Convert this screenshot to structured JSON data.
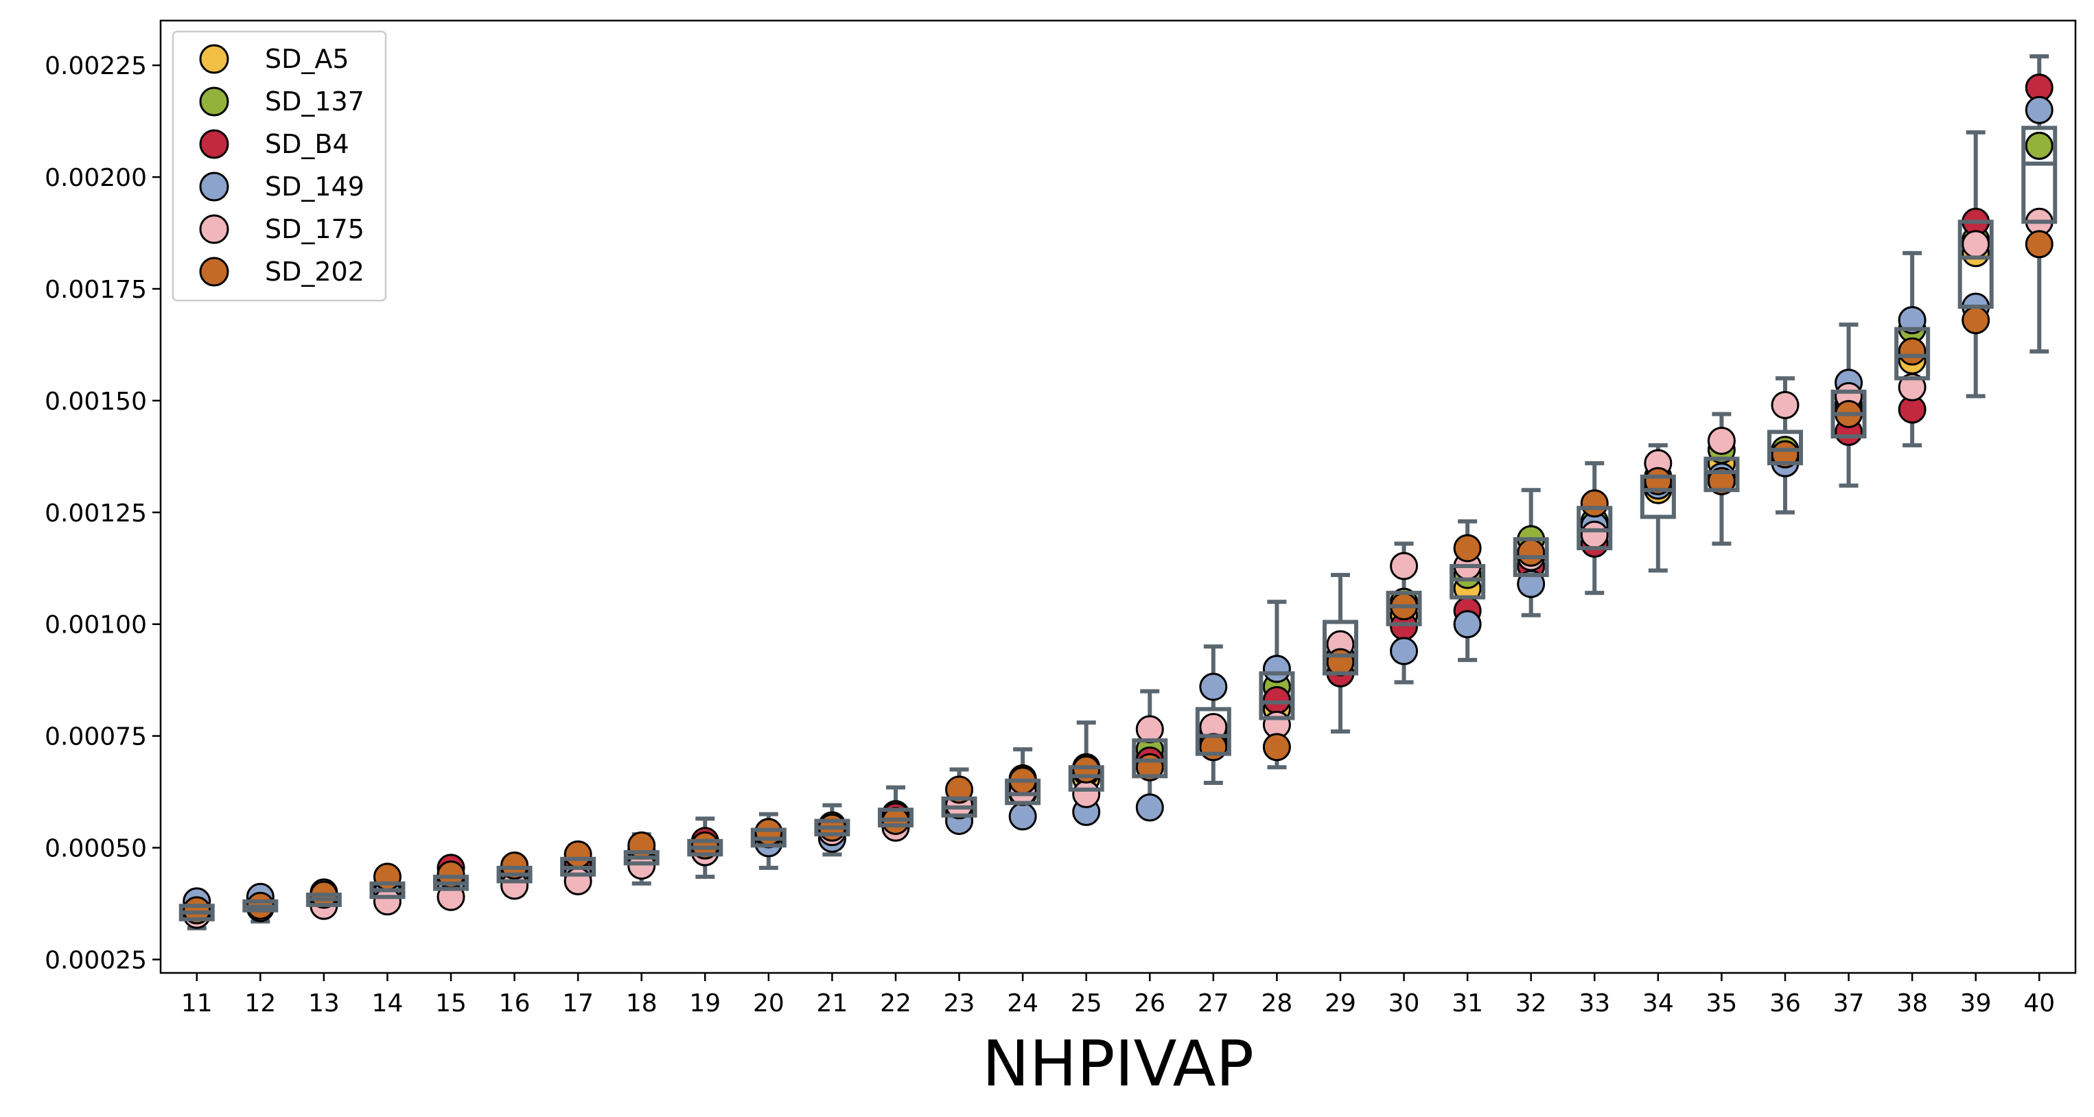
{
  "chart_data": {
    "type": "box+scatter",
    "title": "",
    "xlabel": "NHPIVAP",
    "ylabel": "",
    "x": [
      11,
      12,
      13,
      14,
      15,
      16,
      17,
      18,
      19,
      20,
      21,
      22,
      23,
      24,
      25,
      26,
      27,
      28,
      29,
      30,
      31,
      32,
      33,
      34,
      35,
      36,
      37,
      38,
      39,
      40
    ],
    "x_tick_labels": [
      "11",
      "12",
      "13",
      "14",
      "15",
      "16",
      "17",
      "18",
      "19",
      "20",
      "21",
      "22",
      "23",
      "24",
      "25",
      "26",
      "27",
      "28",
      "29",
      "30",
      "31",
      "32",
      "33",
      "34",
      "35",
      "36",
      "37",
      "38",
      "39",
      "40"
    ],
    "ylim": [
      0.00022,
      0.00235
    ],
    "y_ticks": [
      0.00025,
      0.0005,
      0.00075,
      0.001,
      0.00125,
      0.0015,
      0.00175,
      0.002,
      0.00225
    ],
    "y_tick_labels": [
      "0.00025",
      "0.00050",
      "0.00075",
      "0.00100",
      "0.00125",
      "0.00150",
      "0.00175",
      "0.00200",
      "0.00225"
    ],
    "grid": false,
    "legend_position": "top-left",
    "box_style": {
      "edge_color": "#5b6770",
      "face_color": "none"
    },
    "series": [
      {
        "name": "SD_A5",
        "color": "#f2bf45",
        "values": [
          0.000355,
          0.00037,
          0.000385,
          0.000405,
          0.00042,
          0.00044,
          0.000455,
          0.000475,
          0.0005,
          0.00052,
          0.000545,
          0.00056,
          0.000585,
          0.00062,
          0.000655,
          0.0007,
          0.00074,
          0.00081,
          0.000915,
          0.00102,
          0.00108,
          0.00113,
          0.00121,
          0.0013,
          0.00136,
          0.00138,
          0.00149,
          0.00159,
          0.00183,
          0.00207
        ]
      },
      {
        "name": "SD_137",
        "color": "#93b23b",
        "values": [
          0.00036,
          0.00038,
          0.00039,
          0.000415,
          0.000435,
          0.000455,
          0.000465,
          0.00049,
          0.00051,
          0.000525,
          0.00055,
          0.000575,
          0.0006,
          0.00064,
          0.00067,
          0.00072,
          0.00076,
          0.00086,
          0.00093,
          0.00105,
          0.00111,
          0.00119,
          0.00123,
          0.00132,
          0.00139,
          0.00139,
          0.00148,
          0.00166,
          0.00186,
          0.00207
        ]
      },
      {
        "name": "SD_B4",
        "color": "#c2283e",
        "values": [
          0.000355,
          0.000375,
          0.000385,
          0.000415,
          0.000455,
          0.00046,
          0.00047,
          0.000495,
          0.000515,
          0.000535,
          0.000545,
          0.00057,
          0.00057,
          0.000655,
          0.00068,
          0.000695,
          0.000735,
          0.00083,
          0.00089,
          0.000995,
          0.00103,
          0.00113,
          0.00118,
          0.00133,
          0.00132,
          0.00137,
          0.00143,
          0.00148,
          0.0019,
          0.0022
        ]
      },
      {
        "name": "SD_149",
        "color": "#8ca3cb",
        "values": [
          0.00038,
          0.00039,
          0.0004,
          0.0004,
          0.00042,
          0.00043,
          0.00044,
          0.00047,
          0.00049,
          0.00051,
          0.00052,
          0.00055,
          0.00056,
          0.00057,
          0.00058,
          0.00059,
          0.00086,
          0.0009,
          0.00093,
          0.00094,
          0.001,
          0.00109,
          0.00122,
          0.00131,
          0.00133,
          0.00136,
          0.00154,
          0.00168,
          0.00171,
          0.00215
        ]
      },
      {
        "name": "SD_175",
        "color": "#f0b6bc",
        "values": [
          0.00035,
          0.000365,
          0.00037,
          0.00038,
          0.00039,
          0.000415,
          0.000425,
          0.00046,
          0.00049,
          0.00053,
          0.000535,
          0.000545,
          0.000595,
          0.000625,
          0.00062,
          0.000765,
          0.00077,
          0.000775,
          0.000955,
          0.00113,
          0.00113,
          0.00115,
          0.0012,
          0.00136,
          0.00141,
          0.00149,
          0.00151,
          0.00153,
          0.00185,
          0.0019
        ]
      },
      {
        "name": "SD_202",
        "color": "#c36a26",
        "values": [
          0.00036,
          0.00037,
          0.000395,
          0.000435,
          0.00044,
          0.00046,
          0.000485,
          0.000505,
          0.000505,
          0.000535,
          0.000545,
          0.00056,
          0.00063,
          0.00065,
          0.000675,
          0.00068,
          0.000725,
          0.000725,
          0.000915,
          0.00104,
          0.00117,
          0.00116,
          0.00127,
          0.00132,
          0.00132,
          0.00138,
          0.00147,
          0.00161,
          0.00168,
          0.00185
        ]
      }
    ],
    "boxes": [
      {
        "x": 11,
        "whislo": 0.00032,
        "q1": 0.00034,
        "med": 0.000355,
        "q3": 0.00037,
        "whishi": 0.000385
      },
      {
        "x": 12,
        "whislo": 0.000335,
        "q1": 0.00036,
        "med": 0.000368,
        "q3": 0.00038,
        "whishi": 0.00039
      },
      {
        "x": 13,
        "whislo": 0.000355,
        "q1": 0.000372,
        "med": 0.000385,
        "q3": 0.000395,
        "whishi": 0.00041
      },
      {
        "x": 14,
        "whislo": 0.000375,
        "q1": 0.00039,
        "med": 0.000405,
        "q3": 0.00042,
        "whishi": 0.00044
      },
      {
        "x": 15,
        "whislo": 0.000385,
        "q1": 0.000408,
        "med": 0.00042,
        "q3": 0.000435,
        "whishi": 0.00046
      },
      {
        "x": 16,
        "whislo": 0.000395,
        "q1": 0.000425,
        "med": 0.00044,
        "q3": 0.000455,
        "whishi": 0.00047
      },
      {
        "x": 17,
        "whislo": 0.000415,
        "q1": 0.00044,
        "med": 0.000455,
        "q3": 0.000475,
        "whishi": 0.000505
      },
      {
        "x": 18,
        "whislo": 0.00042,
        "q1": 0.000465,
        "med": 0.000478,
        "q3": 0.00049,
        "whishi": 0.00053
      },
      {
        "x": 19,
        "whislo": 0.000435,
        "q1": 0.000485,
        "med": 0.0005,
        "q3": 0.000515,
        "whishi": 0.000565
      },
      {
        "x": 20,
        "whislo": 0.000455,
        "q1": 0.000505,
        "med": 0.00052,
        "q3": 0.00054,
        "whishi": 0.000575
      },
      {
        "x": 21,
        "whislo": 0.000485,
        "q1": 0.00053,
        "med": 0.000545,
        "q3": 0.00056,
        "whishi": 0.000595
      },
      {
        "x": 22,
        "whislo": 0.00053,
        "q1": 0.00055,
        "med": 0.000563,
        "q3": 0.000585,
        "whishi": 0.000635
      },
      {
        "x": 23,
        "whislo": 0.00055,
        "q1": 0.000572,
        "med": 0.00059,
        "q3": 0.00061,
        "whishi": 0.000675
      },
      {
        "x": 24,
        "whislo": 0.00057,
        "q1": 0.0006,
        "med": 0.00062,
        "q3": 0.00065,
        "whishi": 0.00072
      },
      {
        "x": 25,
        "whislo": 0.000575,
        "q1": 0.00063,
        "med": 0.00066,
        "q3": 0.00068,
        "whishi": 0.00078
      },
      {
        "x": 26,
        "whislo": 0.00059,
        "q1": 0.00066,
        "med": 0.000695,
        "q3": 0.00074,
        "whishi": 0.00085
      },
      {
        "x": 27,
        "whislo": 0.000645,
        "q1": 0.00071,
        "med": 0.00075,
        "q3": 0.00081,
        "whishi": 0.00095
      },
      {
        "x": 28,
        "whislo": 0.00068,
        "q1": 0.00079,
        "med": 0.000825,
        "q3": 0.00089,
        "whishi": 0.00105
      },
      {
        "x": 29,
        "whislo": 0.00076,
        "q1": 0.00089,
        "med": 0.00093,
        "q3": 0.001005,
        "whishi": 0.00111
      },
      {
        "x": 30,
        "whislo": 0.00087,
        "q1": 0.001,
        "med": 0.00104,
        "q3": 0.00107,
        "whishi": 0.00118
      },
      {
        "x": 31,
        "whislo": 0.00092,
        "q1": 0.00106,
        "med": 0.0011,
        "q3": 0.00113,
        "whishi": 0.00123
      },
      {
        "x": 32,
        "whislo": 0.00102,
        "q1": 0.00111,
        "med": 0.00115,
        "q3": 0.00119,
        "whishi": 0.0013
      },
      {
        "x": 33,
        "whislo": 0.00107,
        "q1": 0.00117,
        "med": 0.00121,
        "q3": 0.00126,
        "whishi": 0.00136
      },
      {
        "x": 34,
        "whislo": 0.00112,
        "q1": 0.00124,
        "med": 0.0013,
        "q3": 0.00133,
        "whishi": 0.0014
      },
      {
        "x": 35,
        "whislo": 0.00118,
        "q1": 0.0013,
        "med": 0.00134,
        "q3": 0.00137,
        "whishi": 0.00147
      },
      {
        "x": 36,
        "whislo": 0.00125,
        "q1": 0.00136,
        "med": 0.00139,
        "q3": 0.00143,
        "whishi": 0.00155
      },
      {
        "x": 37,
        "whislo": 0.00131,
        "q1": 0.00142,
        "med": 0.00147,
        "q3": 0.00152,
        "whishi": 0.00167
      },
      {
        "x": 38,
        "whislo": 0.0014,
        "q1": 0.00155,
        "med": 0.0016,
        "q3": 0.00166,
        "whishi": 0.00183
      },
      {
        "x": 39,
        "whislo": 0.00151,
        "q1": 0.00171,
        "med": 0.00182,
        "q3": 0.0019,
        "whishi": 0.0021
      },
      {
        "x": 40,
        "whislo": 0.00161,
        "q1": 0.0019,
        "med": 0.00203,
        "q3": 0.00211,
        "whishi": 0.00227
      }
    ]
  }
}
